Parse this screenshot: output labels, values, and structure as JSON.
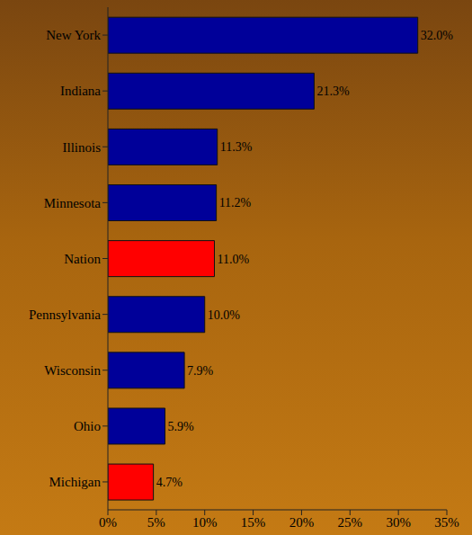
{
  "chart_data": {
    "type": "bar",
    "orientation": "horizontal",
    "categories": [
      "New York",
      "Indiana",
      "Illinois",
      "Minnesota",
      "Nation",
      "Pennsylvania",
      "Wisconsin",
      "Ohio",
      "Michigan"
    ],
    "values": [
      32.0,
      21.3,
      11.3,
      11.2,
      11.0,
      10.0,
      7.9,
      5.9,
      4.7
    ],
    "value_labels": [
      "32.0%",
      "21.3%",
      "11.3%",
      "11.2%",
      "11.0%",
      "10.0%",
      "7.9%",
      "5.9%",
      "4.7%"
    ],
    "colors": [
      "#000099",
      "#000099",
      "#000099",
      "#000099",
      "#ff0000",
      "#000099",
      "#000099",
      "#000099",
      "#ff0000"
    ],
    "xlim": [
      0,
      35
    ],
    "xticks": [
      {
        "value": 0,
        "label": "0%"
      },
      {
        "value": 5,
        "label": "5%"
      },
      {
        "value": 10,
        "label": "10%"
      },
      {
        "value": 15,
        "label": "15%"
      },
      {
        "value": 20,
        "label": "20%"
      },
      {
        "value": 25,
        "label": "25%"
      },
      {
        "value": 30,
        "label": "30%"
      },
      {
        "value": 35,
        "label": "35%"
      }
    ],
    "grid": false,
    "data_labels": true
  }
}
